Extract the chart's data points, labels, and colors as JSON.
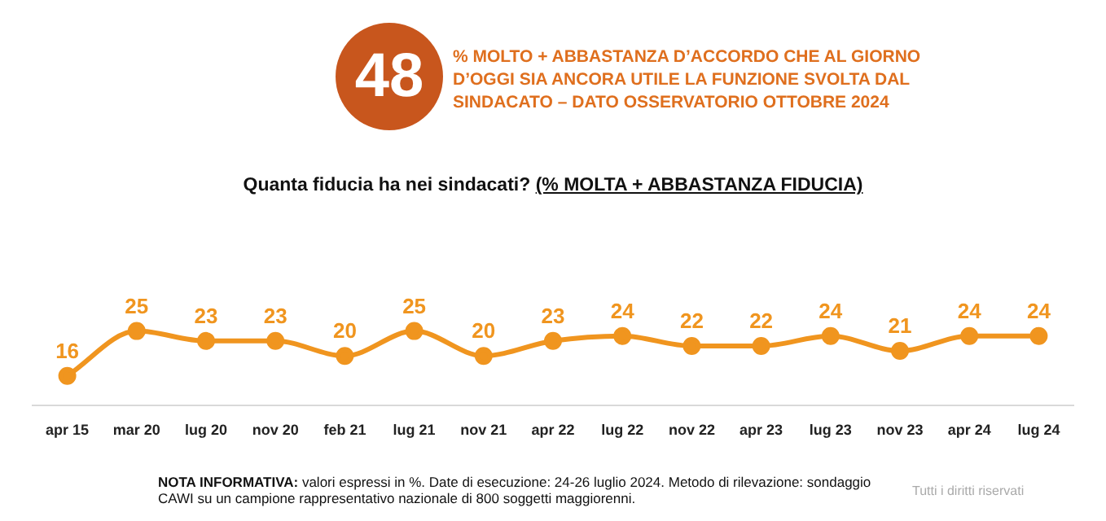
{
  "chart_data": {
    "type": "line",
    "title": "Quanta fiducia ha nei sindacati?",
    "subtitle": "(% MOLTA + ABBASTANZA FIDUCIA)",
    "categories": [
      "apr 15",
      "mar 20",
      "lug 20",
      "nov 20",
      "feb 21",
      "lug 21",
      "nov 21",
      "apr 22",
      "lug 22",
      "nov 22",
      "apr 23",
      "lug 23",
      "nov 23",
      "apr 24",
      "lug 24"
    ],
    "series": [
      {
        "color": "#f0951f",
        "values": [
          16,
          25,
          23,
          23,
          20,
          25,
          20,
          23,
          24,
          22,
          22,
          24,
          21,
          24,
          24
        ]
      }
    ],
    "data_labels": true,
    "grid": false,
    "legend": false,
    "marker": "circle",
    "line_style": "solid",
    "annotations": [
      "48",
      "% MOLTO + ABBASTANZA D’ACCORDO CHE AL GIORNO D’OGGI SIA ANCORA UTILE LA FUNZIONE SVOLTA DAL SINDACATO – DATO OSSERVATORIO OTTOBRE 2024",
      "NOTA INFORMATIVA: valori espressi in %. Date di esecuzione: 24-26 luglio 2024. Metodo di rilevazione: sondaggio CAWI su un campione rappresentativo nazionale di 800 soggetti maggiorenni.",
      "Tutti i diritti riservati"
    ]
  }
}
